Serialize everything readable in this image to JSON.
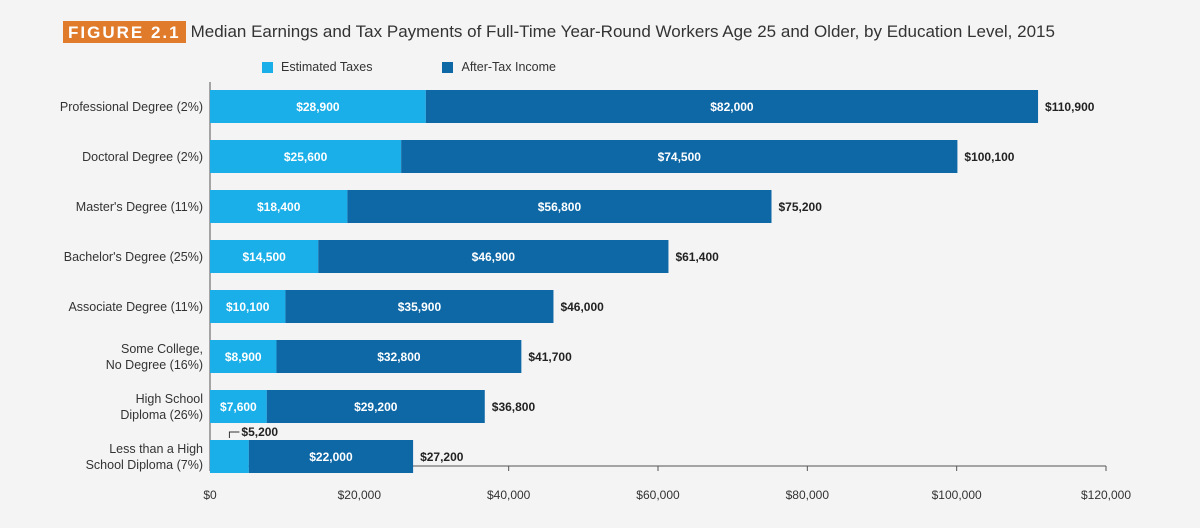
{
  "header": {
    "figure_label": "FIGURE 2.1",
    "title": "Median Earnings and Tax Payments of Full-Time Year-Round Workers Age 25 and Older, by Education Level, 2015"
  },
  "legend": [
    {
      "name": "Estimated Taxes",
      "color": "#1aafe8"
    },
    {
      "name": "After-Tax Income",
      "color": "#0f68a6"
    }
  ],
  "chart_data": {
    "type": "bar",
    "orientation": "horizontal",
    "stacked": true,
    "categories": [
      [
        "Professional Degree (2%)"
      ],
      [
        "Doctoral Degree (2%)"
      ],
      [
        "Master's Degree (11%)"
      ],
      [
        "Bachelor's Degree (25%)"
      ],
      [
        "Associate Degree (11%)"
      ],
      [
        "Some College,",
        "No Degree (16%)"
      ],
      [
        "High School",
        "Diploma (26%)"
      ],
      [
        "Less than a High",
        "School Diploma (7%)"
      ]
    ],
    "series": [
      {
        "name": "Estimated Taxes",
        "color": "#1aafe8",
        "values": [
          28900,
          25600,
          18400,
          14500,
          10100,
          8900,
          7600,
          5200
        ],
        "labels": [
          "$28,900",
          "$25,600",
          "$18,400",
          "$14,500",
          "$10,100",
          "$8,900",
          "$7,600",
          "$5,200"
        ]
      },
      {
        "name": "After-Tax Income",
        "color": "#0f68a6",
        "values": [
          82000,
          74500,
          56800,
          46900,
          35900,
          32800,
          29200,
          22000
        ],
        "labels": [
          "$82,000",
          "$74,500",
          "$56,800",
          "$46,900",
          "$35,900",
          "$32,800",
          "$29,200",
          "$22,000"
        ]
      }
    ],
    "totals": [
      110900,
      100100,
      75200,
      61400,
      46000,
      41700,
      36800,
      27200
    ],
    "total_labels": [
      "$110,900",
      "$100,100",
      "$75,200",
      "$61,400",
      "$46,000",
      "$41,700",
      "$36,800",
      "$27,200"
    ],
    "xlim": [
      0,
      120000
    ],
    "xticks": [
      0,
      20000,
      40000,
      60000,
      80000,
      100000,
      120000
    ],
    "xtick_labels": [
      "$0",
      "$20,000",
      "$40,000",
      "$60,000",
      "$80,000",
      "$100,000",
      "$120,000"
    ],
    "legend_position": "top",
    "grid": false,
    "title": "Median Earnings and Tax Payments of Full-Time Year-Round Workers Age 25 and Older, by Education Level, 2015",
    "xlabel": "",
    "ylabel": ""
  }
}
